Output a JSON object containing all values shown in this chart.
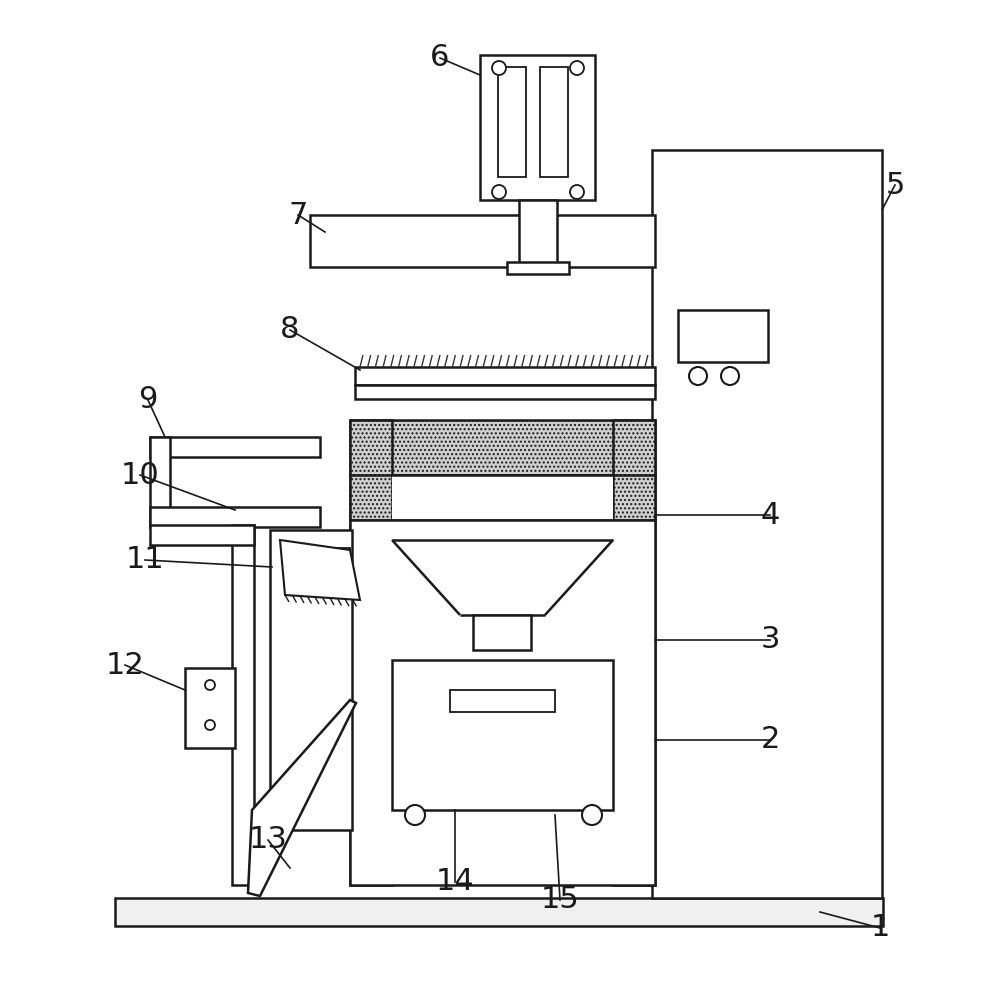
{
  "bg_color": "#ffffff",
  "line_color": "#1a1a1a",
  "figsize": [
    10.0,
    9.83
  ],
  "dpi": 100
}
